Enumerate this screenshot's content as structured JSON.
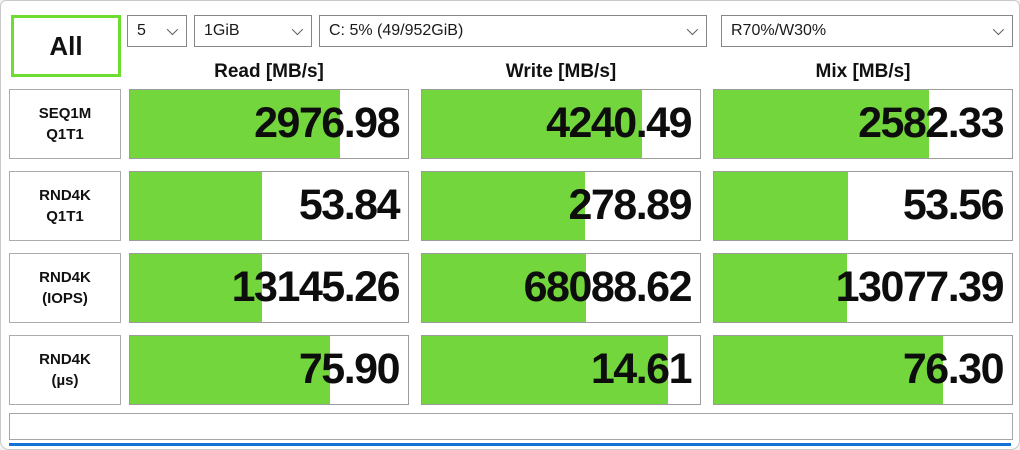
{
  "toolbar": {
    "all_button_label": "All",
    "test_count": "5",
    "test_size": "1GiB",
    "target_drive": "C: 5% (49/952GiB)",
    "mix_ratio": "R70%/W30%"
  },
  "columns": [
    "Read [MB/s]",
    "Write [MB/s]",
    "Mix [MB/s]"
  ],
  "rows": [
    {
      "label_line1": "SEQ1M",
      "label_line2": "Q1T1",
      "read": {
        "value": "2976.98",
        "fill": 75.7
      },
      "write": {
        "value": "4240.49",
        "fill": 79.3
      },
      "mix": {
        "value": "2582.33",
        "fill": 72.0
      }
    },
    {
      "label_line1": "RND4K",
      "label_line2": "Q1T1",
      "read": {
        "value": "53.84",
        "fill": 47.5
      },
      "write": {
        "value": "278.89",
        "fill": 58.6
      },
      "mix": {
        "value": "53.56",
        "fill": 45.0
      }
    },
    {
      "label_line1": "RND4K",
      "label_line2": "(IOPS)",
      "read": {
        "value": "13145.26",
        "fill": 47.5
      },
      "write": {
        "value": "68088.62",
        "fill": 59.0
      },
      "mix": {
        "value": "13077.39",
        "fill": 44.5
      }
    },
    {
      "label_line1": "RND4K",
      "label_line2": "(µs)",
      "read": {
        "value": "75.90",
        "fill": 72.0
      },
      "write": {
        "value": "14.61",
        "fill": 88.6
      },
      "mix": {
        "value": "76.30",
        "fill": 77.0
      }
    }
  ],
  "status_bar": {
    "text": ""
  },
  "colors": {
    "bar_green": "#73d63c",
    "button_border_green": "#6ddd30",
    "accent_blue": "#1272d8",
    "cell_border": "#9c9c9c",
    "text": "#111111"
  }
}
